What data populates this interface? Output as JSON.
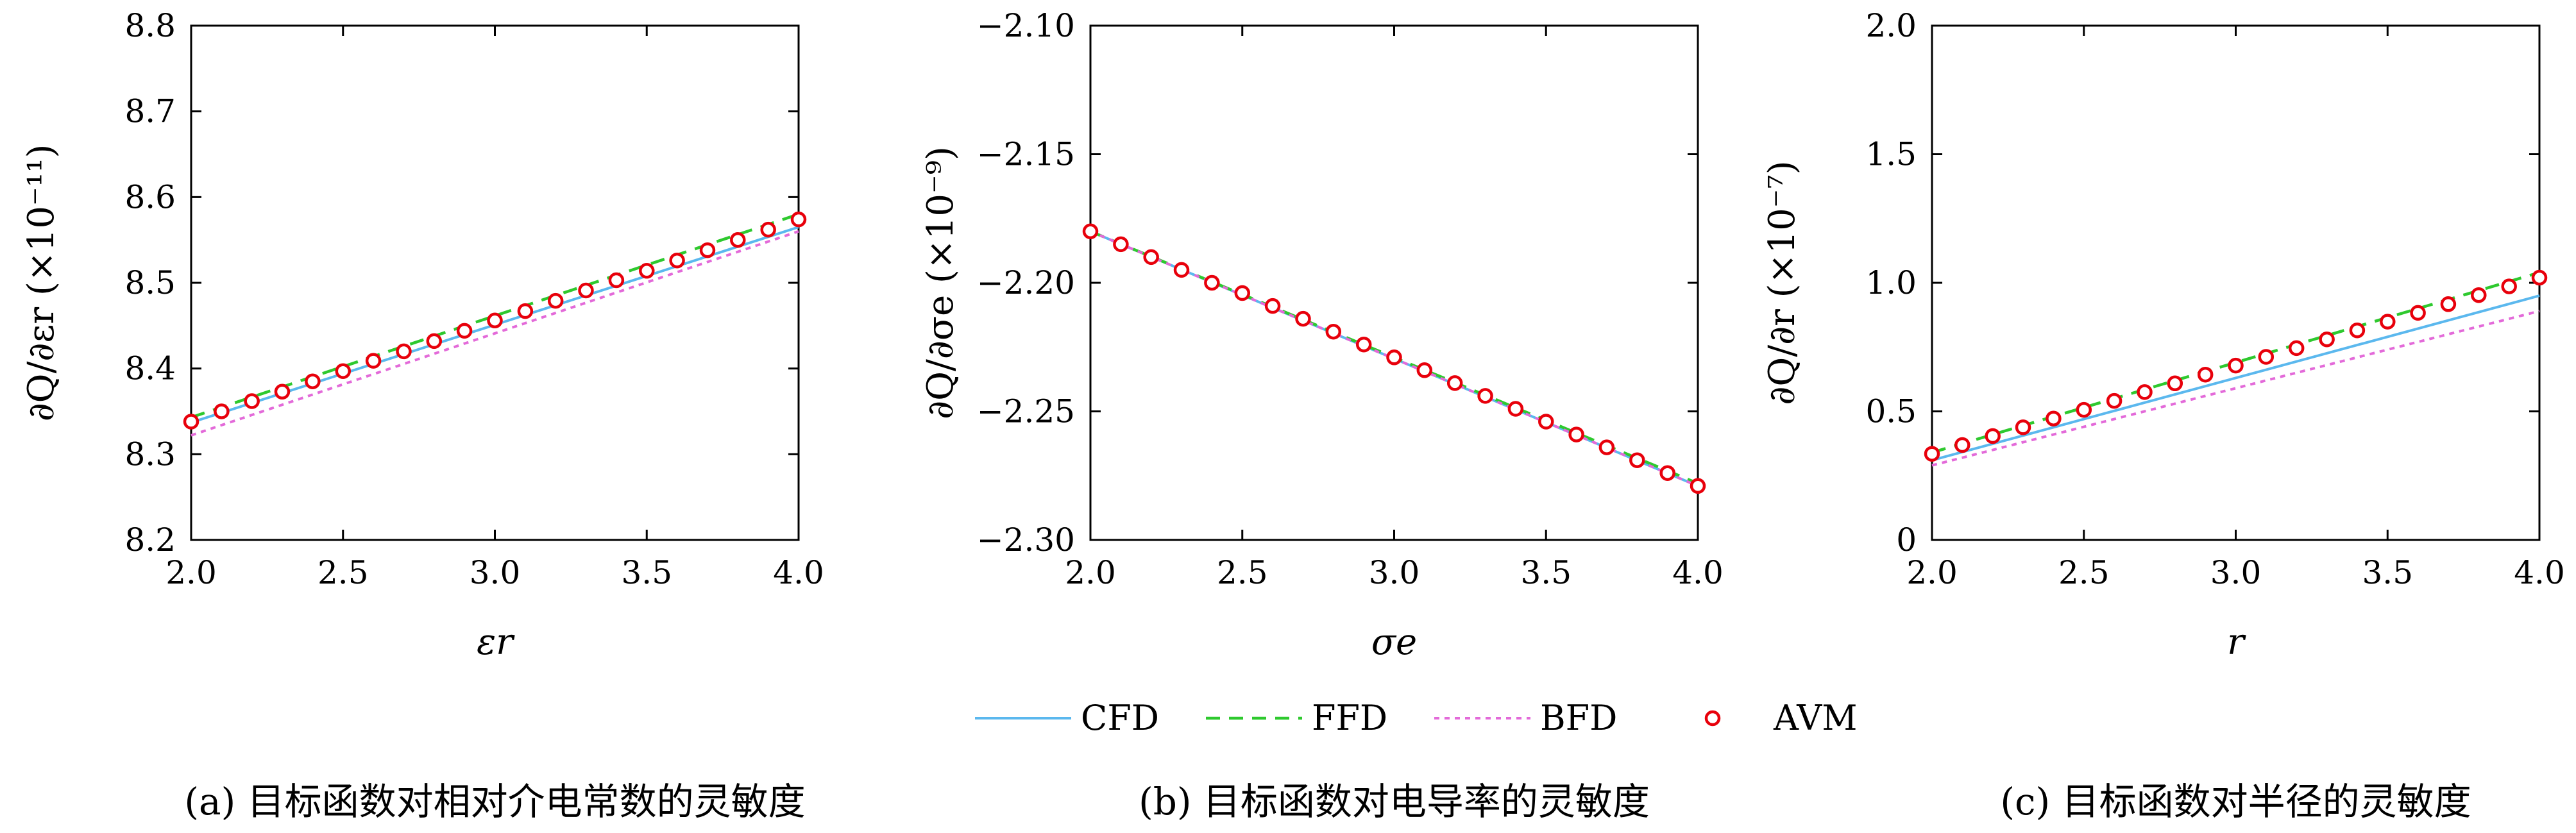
{
  "colors": {
    "CFD": "#5BB8EE",
    "FFD": "#2EC92E",
    "BFD": "#E36AD9",
    "AVM_edge": "#E8000B",
    "AVM_fill": "#ffffff",
    "axis": "#000000"
  },
  "legend": {
    "placement": "bottom-center",
    "items": [
      {
        "key": "CFD",
        "label": "CFD",
        "style": "solid"
      },
      {
        "key": "FFD",
        "label": "FFD",
        "style": "dashed"
      },
      {
        "key": "BFD",
        "label": "BFD",
        "style": "dotted"
      },
      {
        "key": "AVM",
        "label": "AVM",
        "style": "marker-circle"
      }
    ]
  },
  "chart_data": [
    {
      "type": "line",
      "caption": "(a) 目标函数对相对介电常数的灵敏度",
      "xlabel": "εr",
      "ylabel": "∂Q/∂εr (×10⁻¹¹)",
      "xlim": [
        2.0,
        4.0
      ],
      "ylim": [
        8.2,
        8.8
      ],
      "xticks": [
        "2.0",
        "2.5",
        "3.0",
        "3.5",
        "4.0"
      ],
      "yticks": [
        "8.2",
        "8.3",
        "8.4",
        "8.5",
        "8.6",
        "8.7",
        "8.8"
      ],
      "x": [
        2.0,
        2.1,
        2.2,
        2.3,
        2.4,
        2.5,
        2.6,
        2.7,
        2.8,
        2.9,
        3.0,
        3.1,
        3.2,
        3.3,
        3.4,
        3.5,
        3.6,
        3.7,
        3.8,
        3.9,
        4.0
      ],
      "series": [
        {
          "name": "CFD",
          "x": [
            2.0,
            4.0
          ],
          "y": [
            8.337,
            8.565
          ]
        },
        {
          "name": "FFD",
          "x": [
            2.0,
            4.0
          ],
          "y": [
            8.343,
            8.58
          ]
        },
        {
          "name": "BFD",
          "x": [
            2.0,
            4.0
          ],
          "y": [
            8.322,
            8.56
          ]
        },
        {
          "name": "AVM",
          "y": [
            8.338,
            8.35,
            8.362,
            8.373,
            8.385,
            8.397,
            8.409,
            8.42,
            8.432,
            8.444,
            8.456,
            8.467,
            8.479,
            8.491,
            8.503,
            8.514,
            8.526,
            8.538,
            8.55,
            8.562,
            8.574
          ]
        }
      ]
    },
    {
      "type": "line",
      "caption": "(b) 目标函数对电导率的灵敏度",
      "xlabel": "σe",
      "ylabel": "∂Q/∂σe (×10⁻⁹)",
      "xlim": [
        2.0,
        4.0
      ],
      "ylim": [
        -2.3,
        -2.1
      ],
      "xticks": [
        "2.0",
        "2.5",
        "3.0",
        "3.5",
        "4.0"
      ],
      "yticks": [
        "−2.30",
        "−2.25",
        "−2.20",
        "−2.15",
        "−2.10"
      ],
      "x": [
        2.0,
        2.1,
        2.2,
        2.3,
        2.4,
        2.5,
        2.6,
        2.7,
        2.8,
        2.9,
        3.0,
        3.1,
        3.2,
        3.3,
        3.4,
        3.5,
        3.6,
        3.7,
        3.8,
        3.9,
        4.0
      ],
      "series": [
        {
          "name": "CFD",
          "x": [
            2.0,
            4.0
          ],
          "y": [
            -2.18,
            -2.279
          ]
        },
        {
          "name": "FFD",
          "x": [
            2.0,
            4.0
          ],
          "y": [
            -2.18,
            -2.278
          ]
        },
        {
          "name": "BFD",
          "x": [
            2.0,
            4.0
          ],
          "y": [
            -2.18,
            -2.279
          ]
        },
        {
          "name": "AVM",
          "y": [
            -2.18,
            -2.185,
            -2.19,
            -2.195,
            -2.2,
            -2.204,
            -2.209,
            -2.214,
            -2.219,
            -2.224,
            -2.229,
            -2.234,
            -2.239,
            -2.244,
            -2.249,
            -2.254,
            -2.259,
            -2.264,
            -2.269,
            -2.274,
            -2.279
          ]
        }
      ]
    },
    {
      "type": "line",
      "caption": "(c) 目标函数对半径的灵敏度",
      "xlabel": "r",
      "ylabel": "∂Q/∂r (×10⁻⁷)",
      "xlim": [
        2.0,
        4.0
      ],
      "ylim": [
        0,
        2.0
      ],
      "xticks": [
        "2.0",
        "2.5",
        "3.0",
        "3.5",
        "4.0"
      ],
      "yticks": [
        "0",
        "0.5",
        "1.0",
        "1.5",
        "2.0"
      ],
      "x": [
        2.0,
        2.1,
        2.2,
        2.3,
        2.4,
        2.5,
        2.6,
        2.7,
        2.8,
        2.9,
        3.0,
        3.1,
        3.2,
        3.3,
        3.4,
        3.5,
        3.6,
        3.7,
        3.8,
        3.9,
        4.0
      ],
      "series": [
        {
          "name": "CFD",
          "x": [
            2.0,
            4.0
          ],
          "y": [
            0.31,
            0.95
          ]
        },
        {
          "name": "FFD",
          "x": [
            2.0,
            4.0
          ],
          "y": [
            0.34,
            1.04
          ]
        },
        {
          "name": "BFD",
          "x": [
            2.0,
            4.0
          ],
          "y": [
            0.29,
            0.89
          ]
        },
        {
          "name": "AVM",
          "y": [
            0.335,
            0.369,
            0.404,
            0.438,
            0.472,
            0.506,
            0.541,
            0.575,
            0.609,
            0.643,
            0.678,
            0.712,
            0.746,
            0.78,
            0.815,
            0.849,
            0.883,
            0.917,
            0.952,
            0.986,
            1.02
          ]
        }
      ]
    }
  ]
}
